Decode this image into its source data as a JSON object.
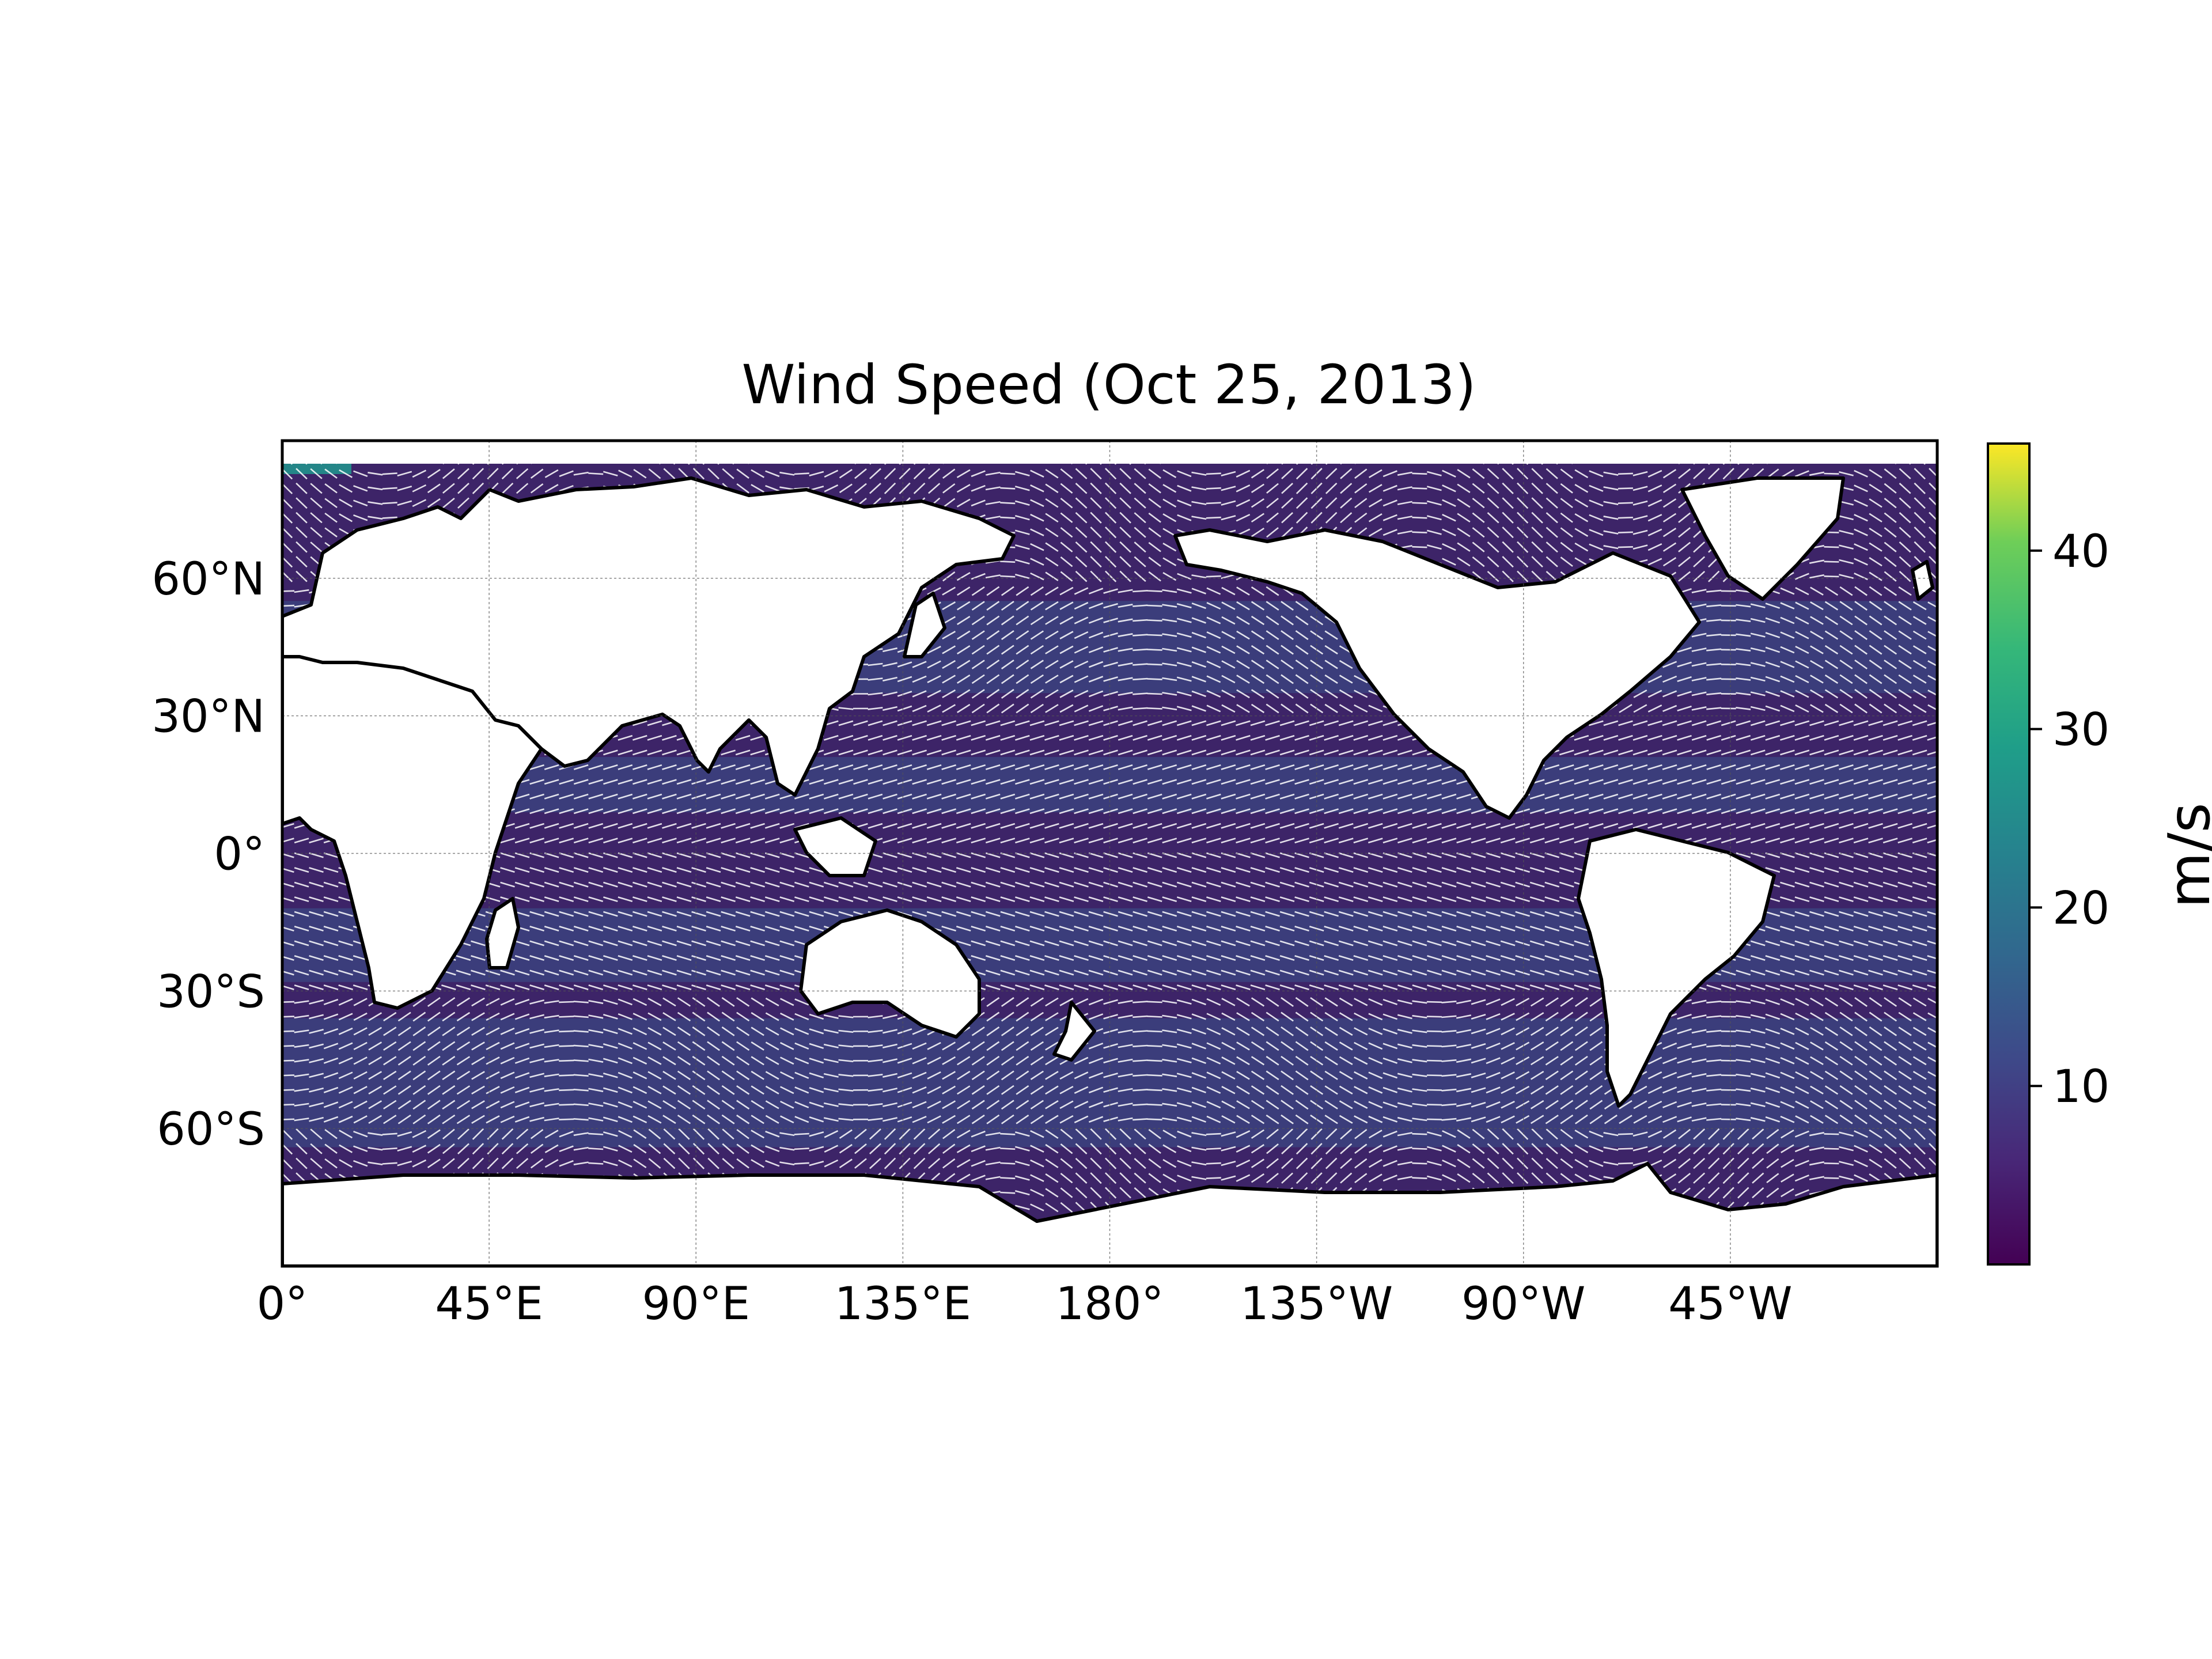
{
  "title": "Wind Speed (Oct 25, 2013)",
  "chart_data": {
    "type": "heatmap",
    "title": "Wind Speed (Oct 25, 2013)",
    "variable": "wind speed with wind direction vectors (quiver)",
    "projection": "equirectangular (PlateCarree), central longitude 180",
    "x_axis": {
      "extent_lon": [
        0,
        360
      ],
      "ticks": [
        {
          "lon": 0,
          "label": "0°"
        },
        {
          "lon": 45,
          "label": "45°E"
        },
        {
          "lon": 90,
          "label": "90°E"
        },
        {
          "lon": 135,
          "label": "135°E"
        },
        {
          "lon": 180,
          "label": "180°"
        },
        {
          "lon": 225,
          "label": "135°W"
        },
        {
          "lon": 270,
          "label": "90°W"
        },
        {
          "lon": 315,
          "label": "45°W"
        }
      ]
    },
    "y_axis": {
      "extent_lat": [
        -90,
        90
      ],
      "ticks": [
        {
          "lat": 60,
          "label": "60°N"
        },
        {
          "lat": 30,
          "label": "30°N"
        },
        {
          "lat": 0,
          "label": "0°"
        },
        {
          "lat": -30,
          "label": "30°S"
        },
        {
          "lat": -60,
          "label": "60°S"
        }
      ]
    },
    "gridlines": true,
    "colorbar": {
      "label": "m/s",
      "colormap": "viridis",
      "range": [
        0,
        46
      ],
      "ticks": [
        {
          "value": 10,
          "label": "10"
        },
        {
          "value": 20,
          "label": "20"
        },
        {
          "value": 30,
          "label": "30"
        },
        {
          "value": 40,
          "label": "40"
        }
      ],
      "placement": "right"
    },
    "land_fill": "white",
    "vector_color": "#ffffff",
    "colors": {
      "low": "#440154",
      "mid_low": "#3b528b",
      "mid": "#21918c",
      "mid_high": "#5ec962",
      "high": "#fde725"
    }
  }
}
